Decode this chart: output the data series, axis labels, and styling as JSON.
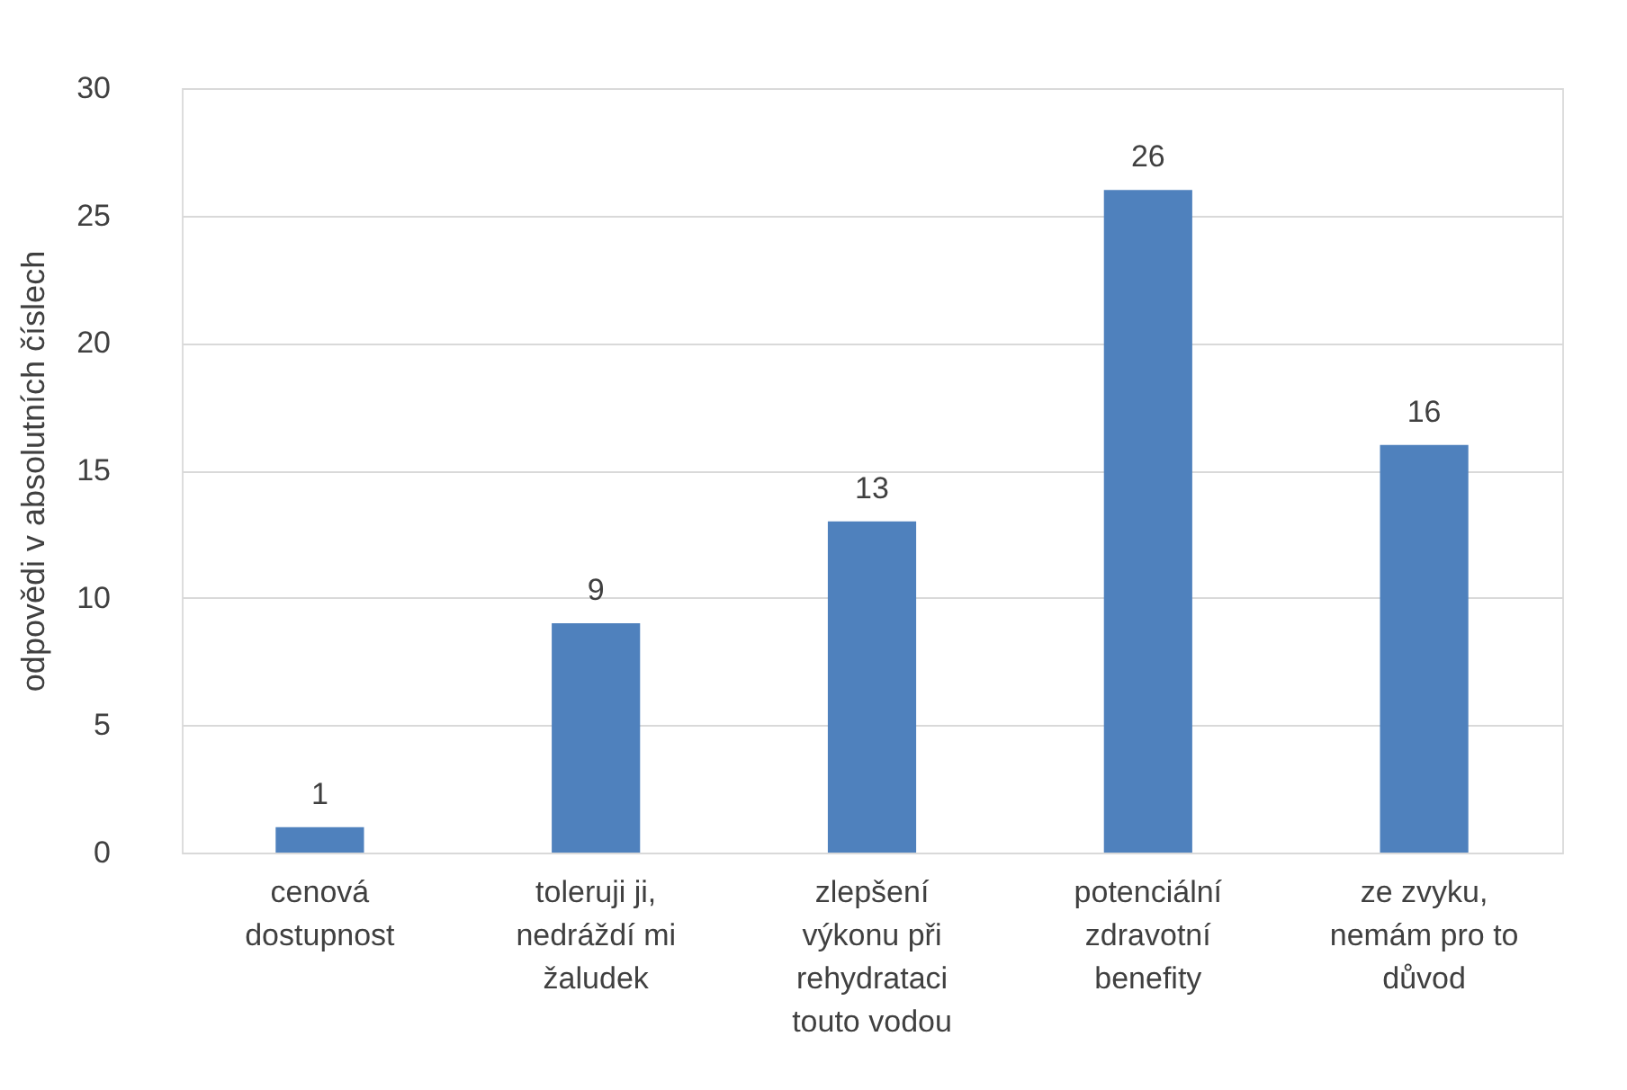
{
  "chart_data": {
    "type": "bar",
    "ylabel": "odpovědi v absolutních číslech",
    "categories": [
      "cenová dostupnost",
      "toleruji ji, nedráždí mi žaludek",
      "zlepšení výkonu při rehydrataci touto vodou",
      "potenciální zdravotní benefity",
      "ze zvyku, nemám pro to důvod"
    ],
    "values": [
      1,
      9,
      13,
      26,
      16
    ],
    "color": "#4f81bd",
    "ylim": [
      0,
      30
    ],
    "yticks": [
      0,
      5,
      10,
      15,
      20,
      25,
      30
    ],
    "grid": "y",
    "data_labels": true
  }
}
